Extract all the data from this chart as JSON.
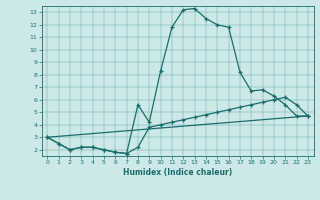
{
  "title": "",
  "xlabel": "Humidex (Indice chaleur)",
  "bg_color": "#cce8e8",
  "line_color": "#1a6e6a",
  "xlim": [
    -0.5,
    23.5
  ],
  "ylim": [
    1.5,
    13.5
  ],
  "yticks": [
    2,
    3,
    4,
    5,
    6,
    7,
    8,
    9,
    10,
    11,
    12,
    13
  ],
  "xticks": [
    0,
    1,
    2,
    3,
    4,
    5,
    6,
    7,
    8,
    9,
    10,
    11,
    12,
    13,
    14,
    15,
    16,
    17,
    18,
    19,
    20,
    21,
    22,
    23
  ],
  "line1_x": [
    0,
    1,
    2,
    3,
    4,
    5,
    6,
    7,
    8,
    9,
    10,
    11,
    12,
    13,
    14,
    15,
    16,
    17,
    18,
    19,
    20,
    21,
    22,
    23
  ],
  "line1_y": [
    3.0,
    2.5,
    2.0,
    2.2,
    2.2,
    2.0,
    1.8,
    1.7,
    5.6,
    4.2,
    8.3,
    11.8,
    13.2,
    13.3,
    12.5,
    12.0,
    11.8,
    8.2,
    6.7,
    6.8,
    6.3,
    5.6,
    4.7,
    4.7
  ],
  "line2_x": [
    0,
    1,
    2,
    3,
    4,
    5,
    6,
    7,
    8,
    9,
    10,
    11,
    12,
    13,
    14,
    15,
    16,
    17,
    18,
    19,
    20,
    21,
    22,
    23
  ],
  "line2_y": [
    3.0,
    2.5,
    2.0,
    2.2,
    2.2,
    2.0,
    1.8,
    1.7,
    2.2,
    3.8,
    4.0,
    4.2,
    4.4,
    4.6,
    4.8,
    5.0,
    5.2,
    5.4,
    5.6,
    5.8,
    6.0,
    6.2,
    5.6,
    4.7
  ],
  "line3_x": [
    0,
    23
  ],
  "line3_y": [
    3.0,
    4.7
  ]
}
